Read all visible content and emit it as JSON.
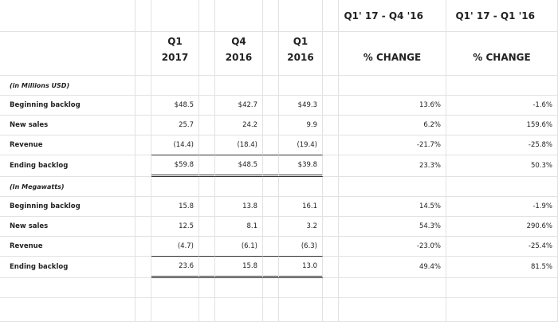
{
  "header": {
    "period_columns": [
      {
        "line1": "Q1",
        "line2": "2017"
      },
      {
        "line1": "Q4",
        "line2": "2016"
      },
      {
        "line1": "Q1",
        "line2": "2016"
      }
    ],
    "change_columns": [
      {
        "range": "Q1' 17 - Q4 '16",
        "label": "% CHANGE"
      },
      {
        "range": "Q1' 17 - Q1 '16",
        "label": "% CHANGE"
      }
    ]
  },
  "sections": [
    {
      "unit": "(in Millions USD)",
      "rows": [
        {
          "label": "Beginning backlog",
          "values": [
            "$48.5",
            "$42.7",
            "$49.3"
          ],
          "changes": [
            "13.6%",
            "-1.6%"
          ]
        },
        {
          "label": "New sales",
          "values": [
            "25.7",
            "24.2",
            "9.9"
          ],
          "changes": [
            "6.2%",
            "159.6%"
          ]
        },
        {
          "label": "Revenue",
          "values": [
            "(14.4)",
            "(18.4)",
            "(19.4)"
          ],
          "changes": [
            "-21.7%",
            "-25.8%"
          ]
        },
        {
          "label": "Ending backlog",
          "values": [
            "$59.8",
            "$48.5",
            "$39.8"
          ],
          "changes": [
            "23.3%",
            "50.3%"
          ]
        }
      ]
    },
    {
      "unit": "(In Megawatts)",
      "rows": [
        {
          "label": "Beginning backlog",
          "values": [
            "15.8",
            "13.8",
            "16.1"
          ],
          "changes": [
            "14.5%",
            "-1.9%"
          ]
        },
        {
          "label": "New sales",
          "values": [
            "12.5",
            "8.1",
            "3.2"
          ],
          "changes": [
            "54.3%",
            "290.6%"
          ]
        },
        {
          "label": "Revenue",
          "values": [
            "(4.7)",
            "(6.1)",
            "(6.3)"
          ],
          "changes": [
            "-23.0%",
            "-25.4%"
          ]
        },
        {
          "label": "Ending backlog",
          "values": [
            "23.6",
            "15.8",
            "13.0"
          ],
          "changes": [
            "49.4%",
            "81.5%"
          ]
        }
      ]
    }
  ]
}
